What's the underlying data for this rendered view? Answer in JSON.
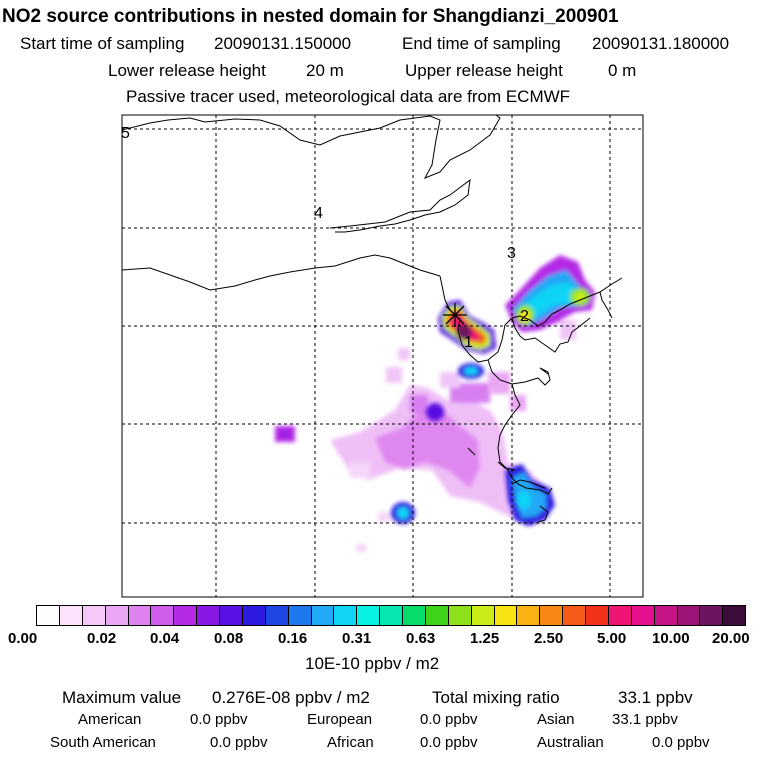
{
  "header": {
    "title": "NO2 source contributions in nested domain for Shangdianzi_200901",
    "start_label": "Start time of sampling",
    "start_value": "20090131.150000",
    "end_label": "End time of sampling",
    "end_value": "20090131.180000",
    "lower_label": "Lower release height",
    "lower_value": "20 m",
    "upper_label": "Upper release height",
    "upper_value": "0 m",
    "note": "Passive tracer used, meteorological data are from ECMWF"
  },
  "map": {
    "grid_labels": [
      "5",
      "4",
      "3",
      "2",
      "1"
    ],
    "station_marker": "asterisk-icon"
  },
  "colorbar": {
    "colors": [
      "#ffffff",
      "#fce4fc",
      "#f5c8f8",
      "#eaa8f4",
      "#de82f0",
      "#cf5cea",
      "#b42ae6",
      "#8a18e4",
      "#5a10e2",
      "#2e1be2",
      "#1e46e4",
      "#1c78ec",
      "#21a8f6",
      "#10d4f4",
      "#05f2e2",
      "#05e6b0",
      "#05dc6a",
      "#3ed41a",
      "#8ee01a",
      "#ccec1a",
      "#f8e412",
      "#f8b214",
      "#f78814",
      "#f55a16",
      "#f2321a",
      "#ee1474",
      "#e4108e",
      "#c41486",
      "#9c1476",
      "#6e1262",
      "#3c0c3a"
    ],
    "tick_labels": [
      "0.00",
      "0.02",
      "0.04",
      "0.08",
      "0.16",
      "0.31",
      "0.63",
      "1.25",
      "2.50",
      "5.00",
      "10.00",
      "20.00"
    ],
    "unit": "10E-10 ppbv / m2"
  },
  "summary": {
    "max_label": "Maximum value",
    "max_value": "0.276E-08 ppbv / m2",
    "total_label": "Total mixing ratio",
    "total_value": "33.1 ppbv",
    "regions": [
      {
        "name": "American",
        "value": "0.0 ppbv"
      },
      {
        "name": "European",
        "value": "0.0 ppbv"
      },
      {
        "name": "Asian",
        "value": "33.1 ppbv"
      },
      {
        "name": "South American",
        "value": "0.0 ppbv"
      },
      {
        "name": "African",
        "value": "0.0 ppbv"
      },
      {
        "name": "Australian",
        "value": "0.0 ppbv"
      }
    ]
  }
}
